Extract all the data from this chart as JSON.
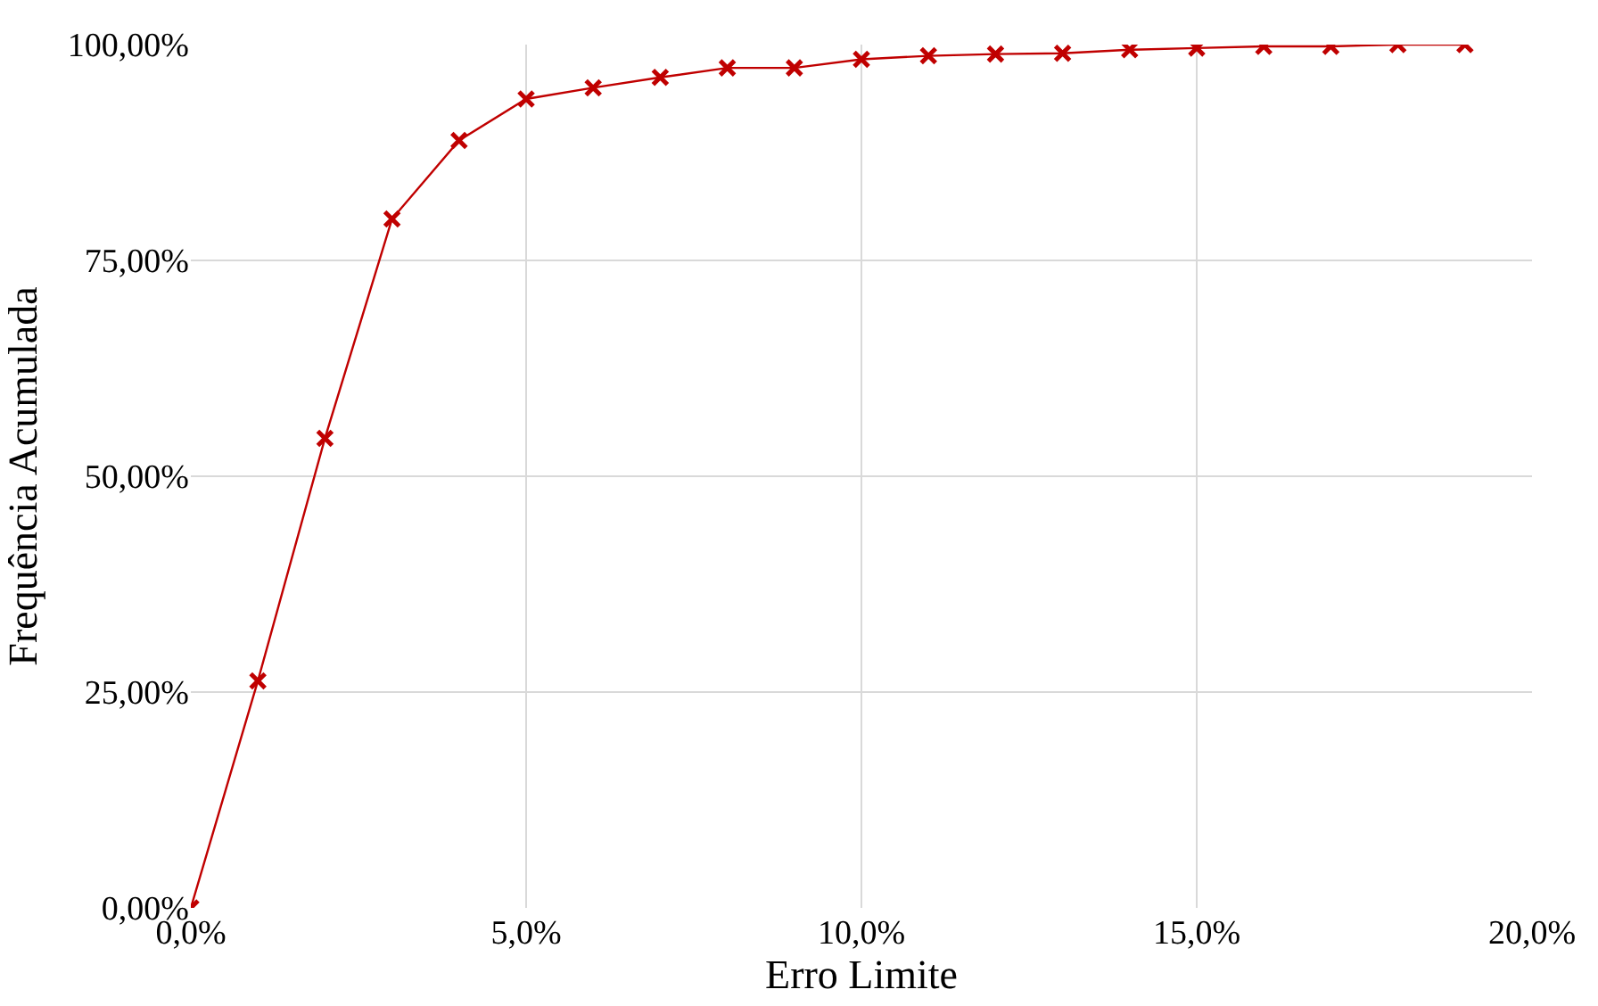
{
  "chart_data": {
    "type": "line",
    "xlabel": "Erro Limite",
    "ylabel": "Frequência Acumulada",
    "x": [
      0,
      1,
      2,
      3,
      4,
      5,
      6,
      7,
      8,
      9,
      10,
      11,
      12,
      13,
      14,
      15,
      16,
      17,
      18,
      19
    ],
    "series": [
      {
        "color": "#c00000",
        "values": [
          0,
          26.3,
          54.4,
          79.8,
          88.9,
          93.7,
          95.0,
          96.2,
          97.3,
          97.3,
          98.3,
          98.7,
          98.9,
          99.0,
          99.4,
          99.6,
          99.8,
          99.8,
          100,
          100
        ]
      }
    ],
    "xlim": [
      0,
      20
    ],
    "ylim": [
      0,
      100
    ],
    "xticks": [
      {
        "value": 0,
        "label": "0,0%"
      },
      {
        "value": 5,
        "label": "5,0%"
      },
      {
        "value": 10,
        "label": "10,0%"
      },
      {
        "value": 15,
        "label": "15,0%"
      },
      {
        "value": 20,
        "label": "20,0%"
      }
    ],
    "yticks": [
      {
        "value": 0,
        "label": "0,00%"
      },
      {
        "value": 25,
        "label": "25,00%"
      },
      {
        "value": 50,
        "label": "50,00%"
      },
      {
        "value": 75,
        "label": "75,00%"
      },
      {
        "value": 100,
        "label": "100,00%"
      }
    ],
    "grid": true,
    "legend": false,
    "marker": "cross",
    "line_style": "solid"
  }
}
